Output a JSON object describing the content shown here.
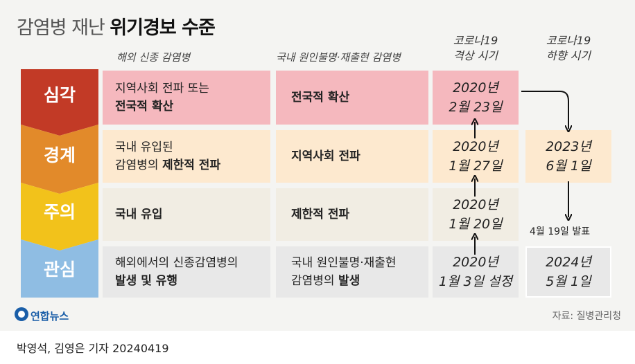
{
  "title": {
    "light": "감염병 재난",
    "bold": "위기경보 수준"
  },
  "headers": {
    "col1": "해외 신종 감염병",
    "col2": "국내 원인불명·재출현 감염병",
    "col3_line1": "코로나19",
    "col3_line2": "격상 시기",
    "col4_line1": "코로나19",
    "col4_line2": "하향 시기"
  },
  "levels": [
    {
      "label": "심각",
      "color": "#c23a26",
      "col1_line1": "지역사회 전파 또는",
      "col1_line2": "전국적 확산",
      "col1_bold2": true,
      "col2": "전국적 확산",
      "up_date1": "2020년",
      "up_date2": "2월 23일",
      "row_color": "#f5b8be"
    },
    {
      "label": "경계",
      "color": "#e28a2a",
      "col1_line1": "국내 유입된",
      "col1_line2a": "감염병의 ",
      "col1_line2b": "제한적 전파",
      "col2": "지역사회 전파",
      "up_date1": "2020년",
      "up_date2": "1월 27일",
      "down_date1": "2023년",
      "down_date2": "6월 1일",
      "row_color": "#fde9cf"
    },
    {
      "label": "주의",
      "color": "#f2c21b",
      "col1_line1": "국내 유입",
      "col2": "제한적 전파",
      "up_date1": "2020년",
      "up_date2": "1월 20일",
      "row_color": "#f1ede3"
    },
    {
      "label": "관심",
      "color": "#8fbde3",
      "col1_line1": "해외에서의 신종감염병의",
      "col1_line2": "발생 및 유행",
      "col2_line1": "국내 원인불명·재출현",
      "col2_line2a": "감염병의 ",
      "col2_line2b": "발생",
      "up_date1": "2020년",
      "up_date2": "1월 3일 설정",
      "down_date1": "2024년",
      "down_date2": "5월 1일",
      "row_color": "#e8e8e8"
    }
  ],
  "note": "4월 19일 발표",
  "logo": "연합뉴스",
  "source": "자료: 질병관리청",
  "byline": "박영석, 김영은 기자  20240419",
  "colors": {
    "level_serious": "#c23a26",
    "level_alert": "#e28a2a",
    "level_caution": "#f2c21b",
    "level_interest": "#8fbde3",
    "logo_blue": "#1a5ea8"
  }
}
